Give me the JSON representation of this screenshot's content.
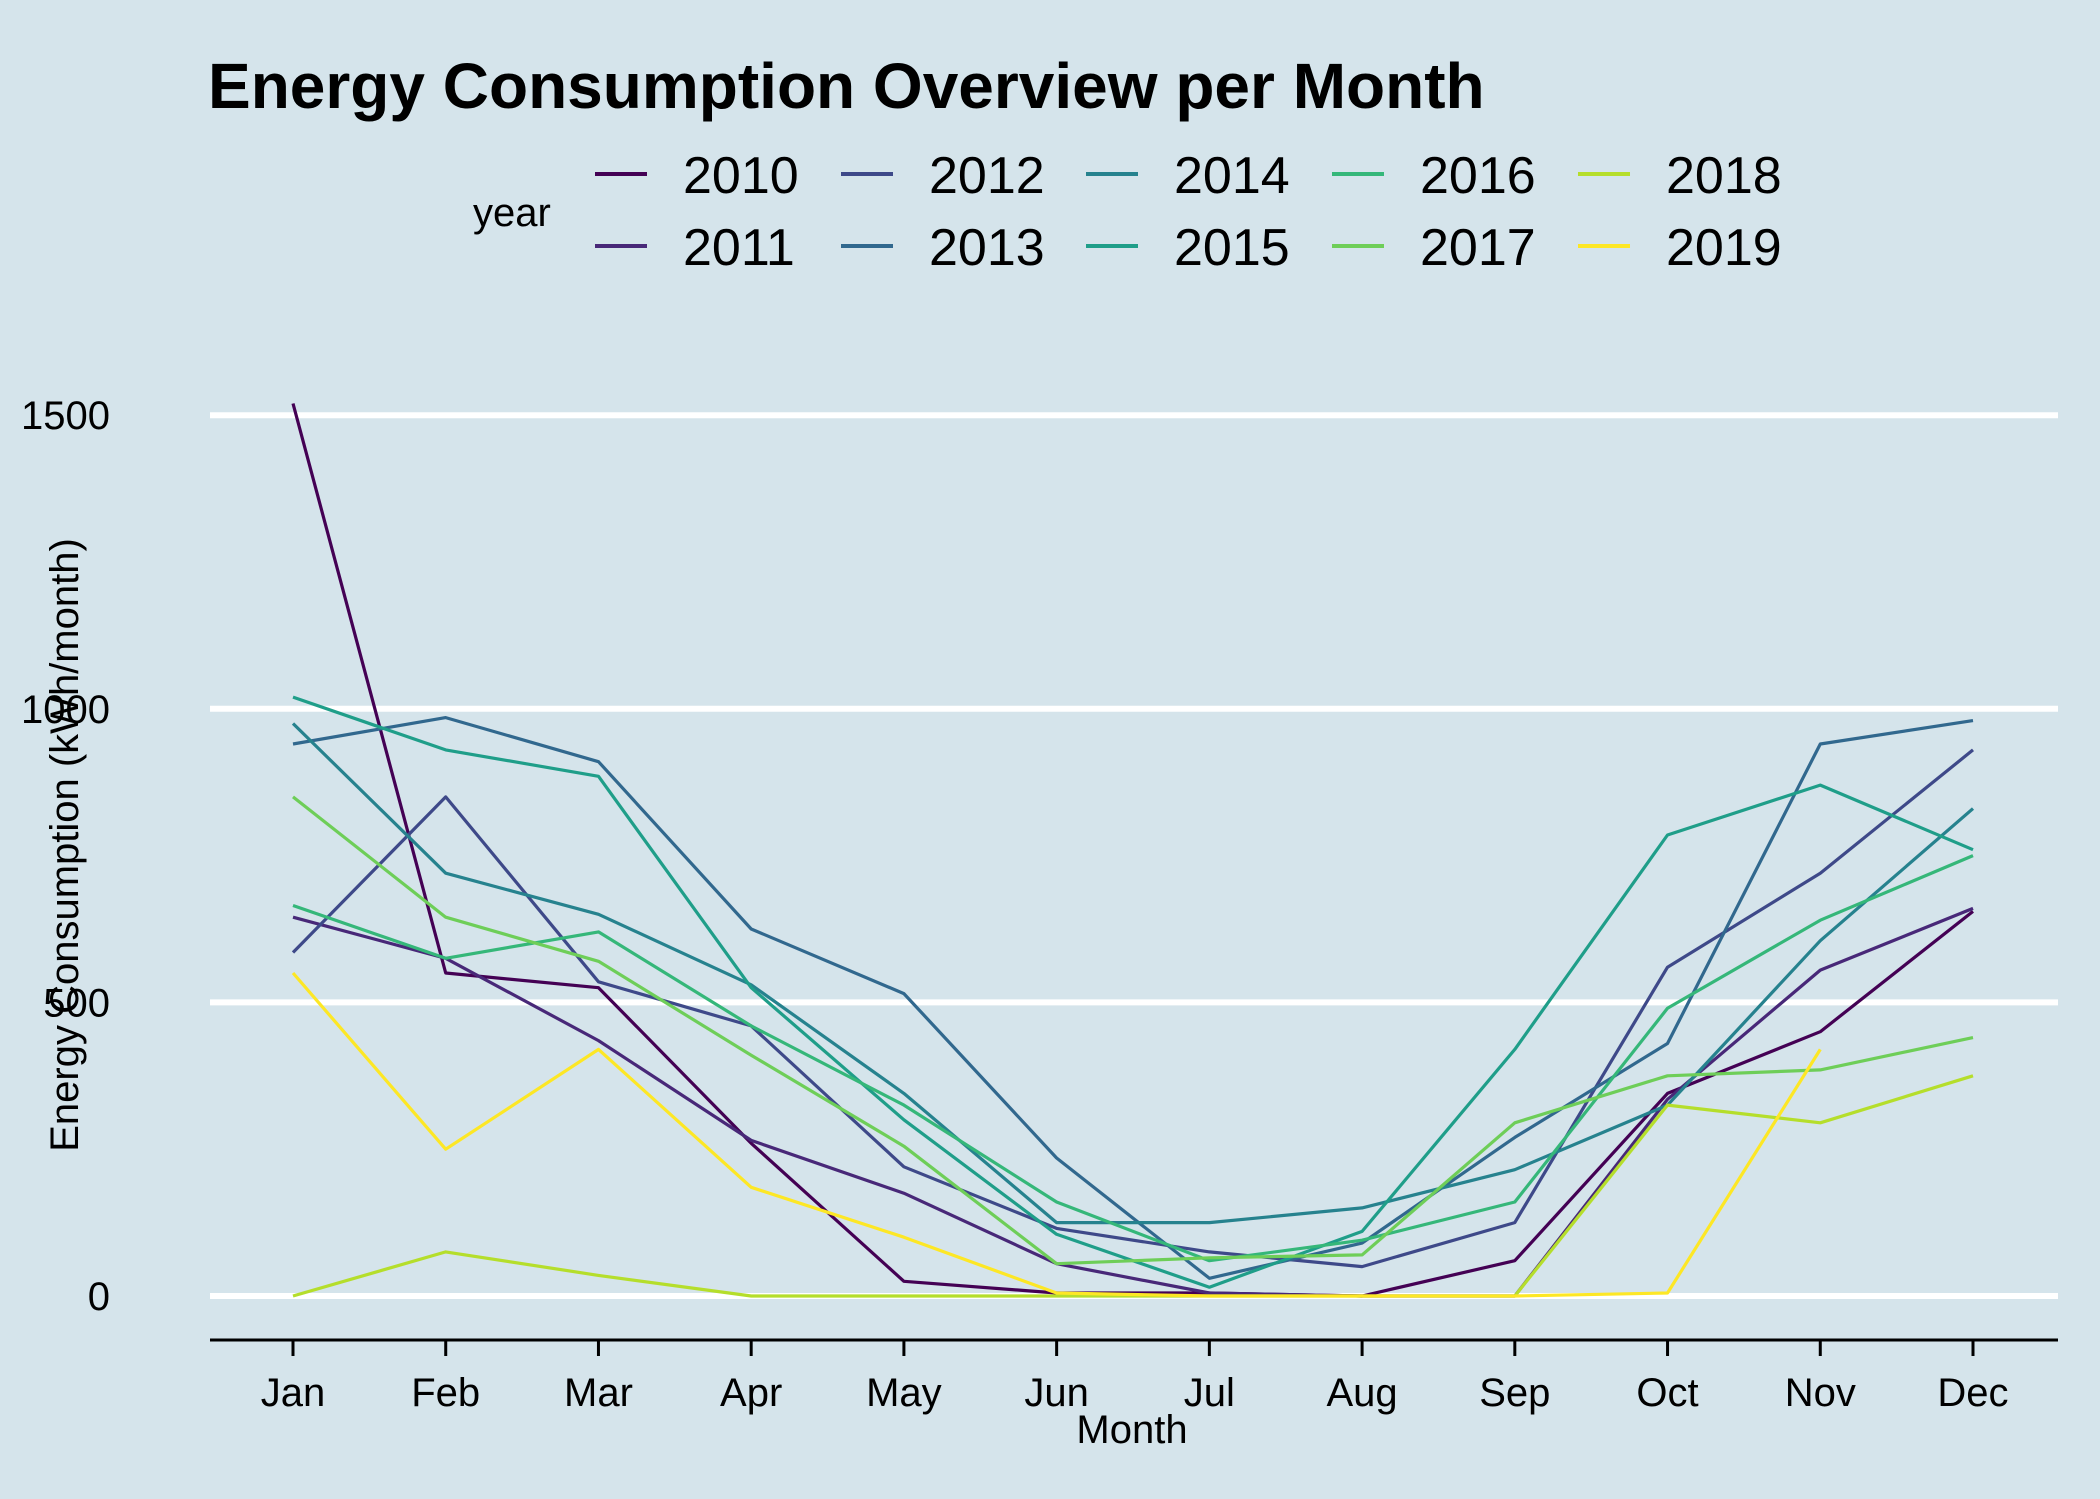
{
  "chart_data": {
    "type": "line",
    "title": "Energy Consumption Overview per Month",
    "xlabel": "Month",
    "ylabel": "Energy Consumption (kWh/month)",
    "legend_title": "year",
    "legend_position": "top",
    "grid": "horizontal major only",
    "ylim": [
      -75,
      1560
    ],
    "yticks": [
      0,
      500,
      1000,
      1500
    ],
    "categories": [
      "Jan",
      "Feb",
      "Mar",
      "Apr",
      "May",
      "Jun",
      "Jul",
      "Aug",
      "Sep",
      "Oct",
      "Nov",
      "Dec"
    ],
    "series": [
      {
        "name": "2010",
        "color": "#440154",
        "values": [
          1520,
          550,
          525,
          260,
          25,
          5,
          5,
          0,
          60,
          345,
          450,
          655
        ]
      },
      {
        "name": "2011",
        "color": "#482878",
        "values": [
          645,
          575,
          435,
          265,
          175,
          55,
          5,
          0,
          0,
          335,
          555,
          660
        ]
      },
      {
        "name": "2012",
        "color": "#3e4989",
        "values": [
          585,
          850,
          535,
          460,
          220,
          115,
          75,
          50,
          125,
          560,
          720,
          930
        ]
      },
      {
        "name": "2013",
        "color": "#31688e",
        "values": [
          940,
          985,
          910,
          625,
          515,
          235,
          30,
          90,
          270,
          430,
          940,
          980
        ]
      },
      {
        "name": "2014",
        "color": "#26828e",
        "values": [
          975,
          720,
          650,
          530,
          345,
          125,
          125,
          150,
          215,
          325,
          605,
          830
        ]
      },
      {
        "name": "2015",
        "color": "#1f9e89",
        "values": [
          1020,
          930,
          885,
          525,
          300,
          105,
          15,
          110,
          420,
          785,
          870,
          760
        ]
      },
      {
        "name": "2016",
        "color": "#35b779",
        "values": [
          665,
          575,
          620,
          460,
          325,
          160,
          60,
          95,
          160,
          490,
          640,
          750
        ]
      },
      {
        "name": "2017",
        "color": "#6ece58",
        "values": [
          850,
          645,
          570,
          410,
          255,
          55,
          65,
          70,
          295,
          375,
          385,
          440
        ]
      },
      {
        "name": "2018",
        "color": "#b5de2b",
        "values": [
          0,
          75,
          35,
          0,
          0,
          0,
          0,
          0,
          0,
          325,
          295,
          375
        ]
      },
      {
        "name": "2019",
        "color": "#fde725",
        "values": [
          550,
          250,
          420,
          185,
          100,
          5,
          0,
          0,
          0,
          5,
          420,
          null
        ]
      }
    ]
  }
}
